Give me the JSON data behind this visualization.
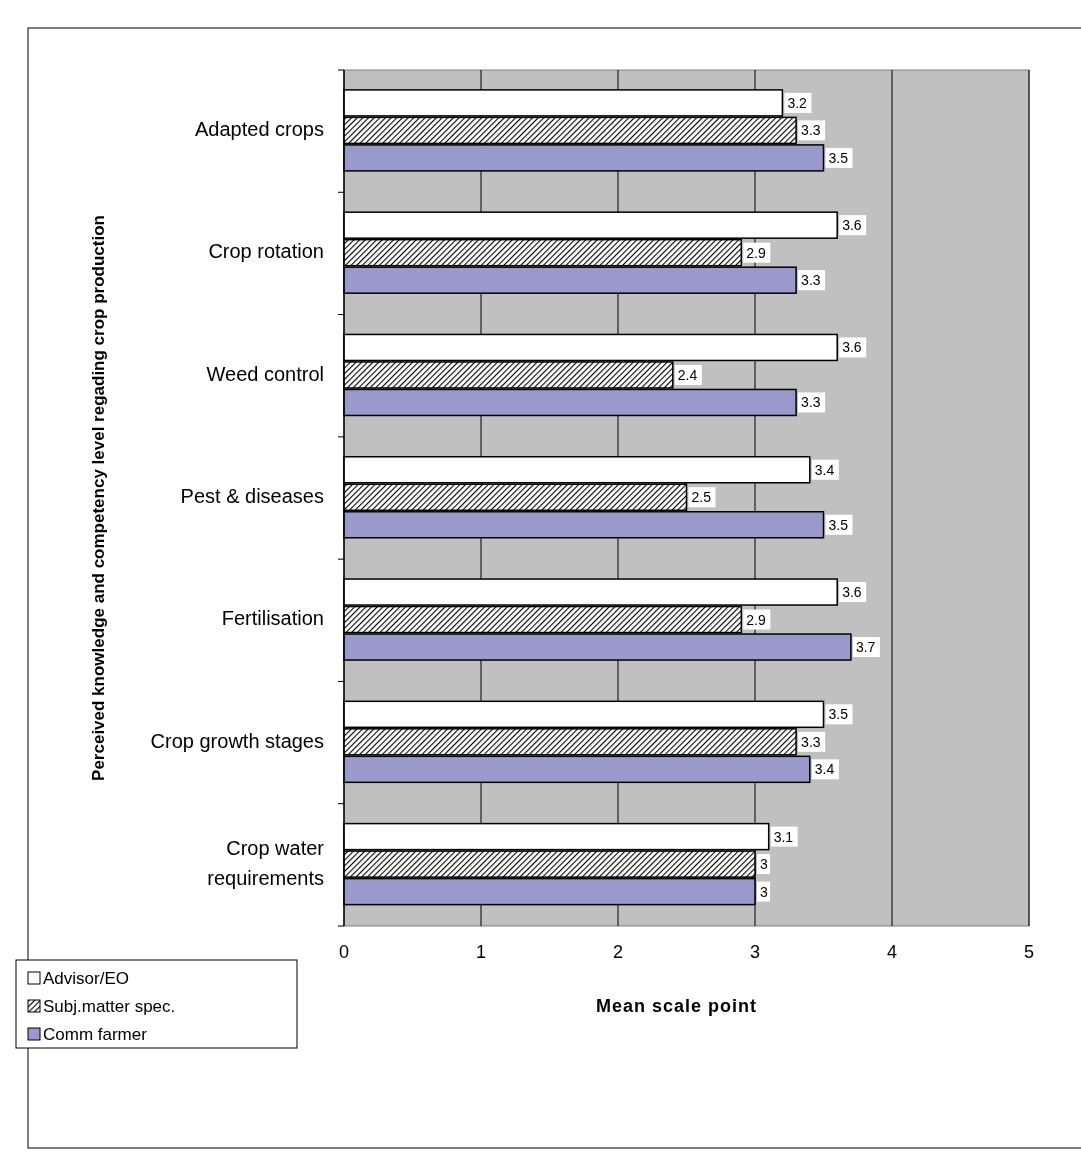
{
  "chart_data": {
    "type": "bar",
    "orientation": "horizontal",
    "xlabel": "Mean  scale point",
    "ylabel": "Perceived knowledge and competency level  regading crop production",
    "categories": [
      "Adapted crops",
      "Crop rotation",
      "Weed control",
      "Pest & diseases",
      "Fertilisation",
      "Crop growth stages",
      "Crop water requirements"
    ],
    "series": [
      {
        "name": "Advisor/EO",
        "color": "#ffffff",
        "values": [
          3.2,
          3.6,
          3.6,
          3.4,
          3.6,
          3.5,
          3.1
        ]
      },
      {
        "name": "Subj.matter spec.",
        "color": "#000000",
        "values": [
          3.3,
          2.9,
          2.4,
          2.5,
          2.9,
          3.3,
          3
        ]
      },
      {
        "name": "Comm farmer",
        "color": "#9999cc",
        "values": [
          3.5,
          3.3,
          3.3,
          3.5,
          3.7,
          3.4,
          3
        ]
      }
    ],
    "xlim": [
      0,
      5
    ],
    "xticks": [
      0,
      1,
      2,
      3,
      4,
      5
    ],
    "grid": "x",
    "legend": "bottom left",
    "data_labels": true
  }
}
